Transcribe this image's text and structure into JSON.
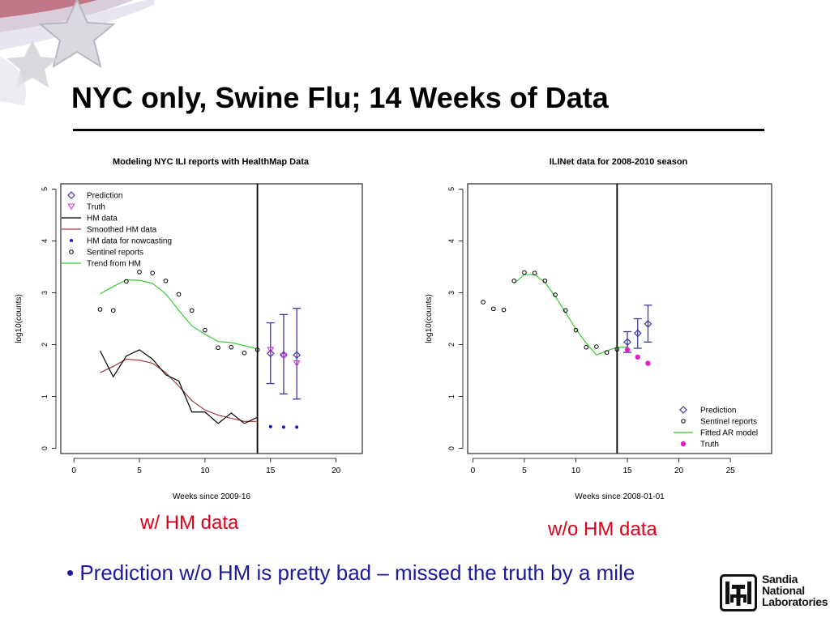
{
  "slide": {
    "title": "NYC only, Swine Flu; 14 Weeks of Data",
    "caption_left": "w/ HM data",
    "caption_right": "w/o HM data",
    "bullet": "Prediction w/o HM is pretty bad – missed the truth by a mile",
    "logo": {
      "lines": [
        "Sandia",
        "National",
        "Laboratories"
      ],
      "icon": "sandia-thunderbird-icon"
    }
  },
  "chart_data": [
    {
      "type": "line",
      "title": "Modeling NYC ILI reports with HealthMap Data",
      "xlabel": "Weeks since 2009-16",
      "ylabel": "log10(counts)",
      "xlim": [
        -1,
        22
      ],
      "ylim": [
        -0.1,
        5.1
      ],
      "xticks": [
        0,
        5,
        10,
        15,
        20
      ],
      "yticks": [
        0,
        1,
        2,
        3,
        4,
        5
      ],
      "vline_x": 14,
      "legend_position": "top-left",
      "legend": [
        "Prediction",
        "Truth",
        "HM data",
        "Smoothed HM data",
        "HM data for nowcasting",
        "Sentinel reports",
        "Trend from HM"
      ],
      "colors": {
        "prediction": "#3b3b9e",
        "truth": "#cc33cc",
        "hm": "#000000",
        "smoothed": "#a33a3a",
        "nowcast": "#1515b0",
        "sentinel": "#000000",
        "trend": "#33cc33"
      },
      "series": {
        "sentinel": [
          [
            2,
            2.68
          ],
          [
            3,
            2.66
          ],
          [
            4,
            3.22
          ],
          [
            5,
            3.4
          ],
          [
            6,
            3.38
          ],
          [
            7,
            3.23
          ],
          [
            8,
            2.97
          ],
          [
            9,
            2.66
          ],
          [
            10,
            2.28
          ],
          [
            11,
            1.94
          ],
          [
            12,
            1.95
          ],
          [
            13,
            1.84
          ],
          [
            14,
            1.9
          ]
        ],
        "hm": [
          [
            2,
            1.88
          ],
          [
            3,
            1.38
          ],
          [
            4,
            1.78
          ],
          [
            5,
            1.9
          ],
          [
            6,
            1.72
          ],
          [
            7,
            1.42
          ],
          [
            8,
            1.3
          ],
          [
            9,
            0.7
          ],
          [
            10,
            0.7
          ],
          [
            11,
            0.48
          ],
          [
            12,
            0.68
          ],
          [
            13,
            0.48
          ],
          [
            14,
            0.6
          ]
        ],
        "smoothed": [
          [
            2,
            1.46
          ],
          [
            3,
            1.58
          ],
          [
            4,
            1.72
          ],
          [
            5,
            1.7
          ],
          [
            6,
            1.64
          ],
          [
            7,
            1.46
          ],
          [
            8,
            1.2
          ],
          [
            9,
            0.92
          ],
          [
            10,
            0.74
          ],
          [
            11,
            0.64
          ],
          [
            12,
            0.58
          ],
          [
            13,
            0.52
          ],
          [
            14,
            0.52
          ]
        ],
        "trend": [
          [
            2,
            2.98
          ],
          [
            3,
            3.12
          ],
          [
            4,
            3.25
          ],
          [
            5,
            3.24
          ],
          [
            6,
            3.18
          ],
          [
            7,
            2.98
          ],
          [
            8,
            2.66
          ],
          [
            9,
            2.36
          ],
          [
            10,
            2.2
          ],
          [
            11,
            2.06
          ],
          [
            12,
            2.04
          ],
          [
            13,
            1.98
          ],
          [
            14,
            1.92
          ]
        ],
        "nowcast": [
          [
            15,
            0.42
          ],
          [
            16,
            0.41
          ],
          [
            17,
            0.41
          ]
        ],
        "prediction": [
          [
            15,
            1.83
          ],
          [
            16,
            1.8
          ],
          [
            17,
            1.8
          ]
        ],
        "prediction_ci": [
          [
            15,
            1.25,
            2.42
          ],
          [
            16,
            1.05,
            2.58
          ],
          [
            17,
            0.95,
            2.7
          ]
        ],
        "truth": [
          [
            15,
            1.9
          ],
          [
            16,
            1.78
          ],
          [
            17,
            1.64
          ]
        ]
      }
    },
    {
      "type": "line",
      "title": "ILINet data for 2008-2010 season",
      "xlabel": "Weeks since 2008-01-01",
      "ylabel": "log10(counts)",
      "xlim": [
        -0.5,
        29
      ],
      "ylim": [
        -0.1,
        5.1
      ],
      "xticks": [
        0,
        5,
        10,
        15,
        20,
        25
      ],
      "yticks": [
        0,
        1,
        2,
        3,
        4,
        5
      ],
      "vline_x": 14,
      "legend_position": "bottom-right",
      "legend": [
        "Prediction",
        "Sentinel reports",
        "Fitted AR model",
        "Truth"
      ],
      "colors": {
        "prediction": "#3b3b9e",
        "truth": "#dd22cc",
        "sentinel": "#000000",
        "fitted": "#33cc33"
      },
      "series": {
        "sentinel": [
          [
            1,
            2.82
          ],
          [
            2,
            2.69
          ],
          [
            3,
            2.67
          ],
          [
            4,
            3.23
          ],
          [
            5,
            3.39
          ],
          [
            6,
            3.38
          ],
          [
            7,
            3.23
          ],
          [
            8,
            2.96
          ],
          [
            9,
            2.66
          ],
          [
            10,
            2.28
          ],
          [
            11,
            1.95
          ],
          [
            12,
            1.96
          ],
          [
            13,
            1.85
          ],
          [
            14,
            1.91
          ]
        ],
        "fitted": [
          [
            4,
            3.18
          ],
          [
            5,
            3.35
          ],
          [
            6,
            3.35
          ],
          [
            7,
            3.2
          ],
          [
            8,
            2.93
          ],
          [
            9,
            2.62
          ],
          [
            10,
            2.3
          ],
          [
            11,
            2.03
          ],
          [
            12,
            1.8
          ],
          [
            13,
            1.88
          ],
          [
            14,
            1.95
          ],
          [
            15,
            1.95
          ]
        ],
        "prediction": [
          [
            15,
            2.05
          ],
          [
            16,
            2.22
          ],
          [
            17,
            2.4
          ]
        ],
        "prediction_ci": [
          [
            15,
            1.85,
            2.25
          ],
          [
            16,
            1.93,
            2.5
          ],
          [
            17,
            2.05,
            2.76
          ]
        ],
        "truth": [
          [
            15,
            1.9
          ],
          [
            16,
            1.76
          ],
          [
            17,
            1.64
          ]
        ]
      }
    }
  ]
}
